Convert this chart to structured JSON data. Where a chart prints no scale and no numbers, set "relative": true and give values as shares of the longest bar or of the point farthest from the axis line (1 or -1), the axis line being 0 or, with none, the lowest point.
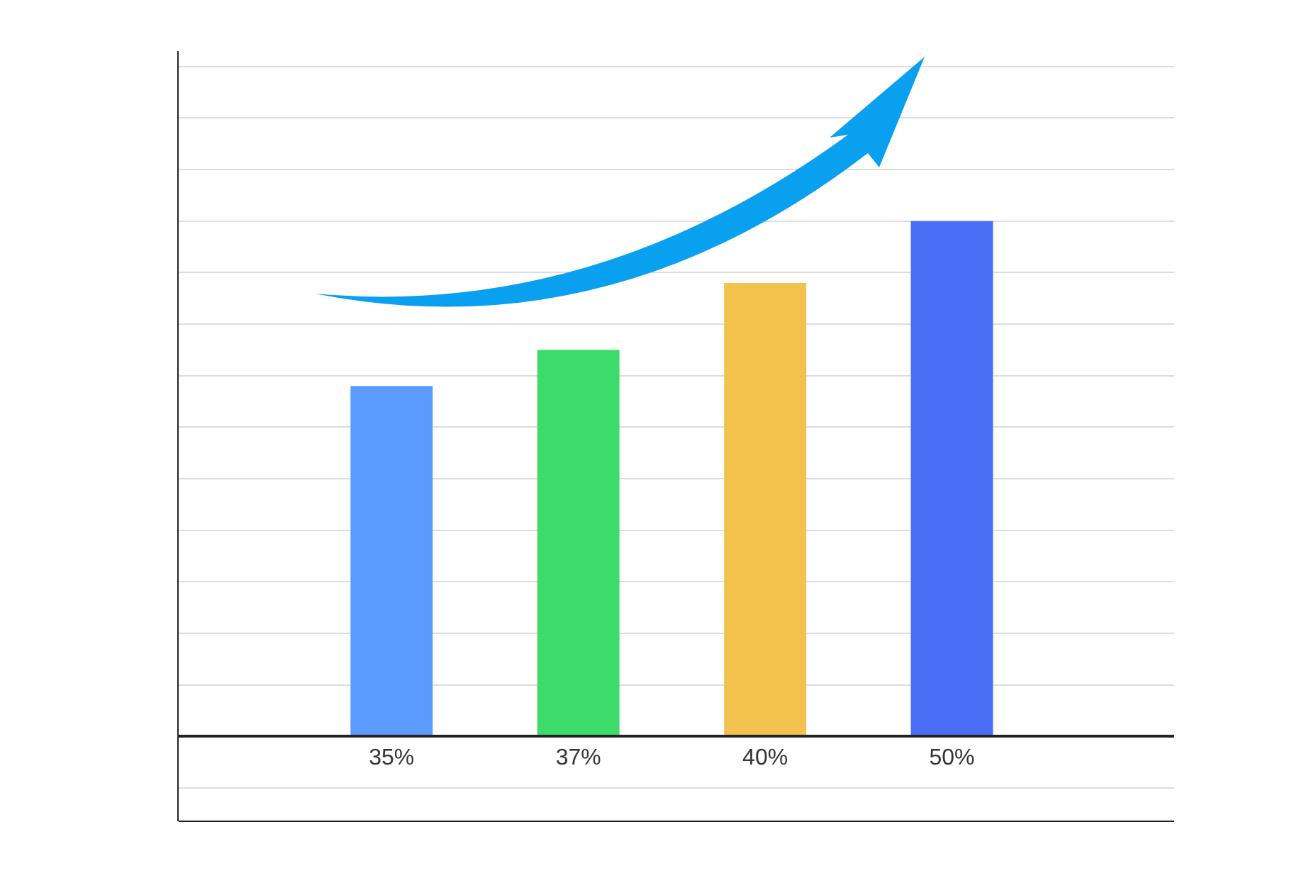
{
  "chart_data": {
    "type": "bar",
    "relative": true,
    "categories": [
      "35%",
      "37%",
      "40%",
      "50%"
    ],
    "values": [
      0.68,
      0.75,
      0.88,
      1
    ],
    "colors": [
      "#5b9bff",
      "#3ddc6a",
      "#f2c14e",
      "#4a6ef5"
    ],
    "grid": "y",
    "tick_labels": "x"
  }
}
